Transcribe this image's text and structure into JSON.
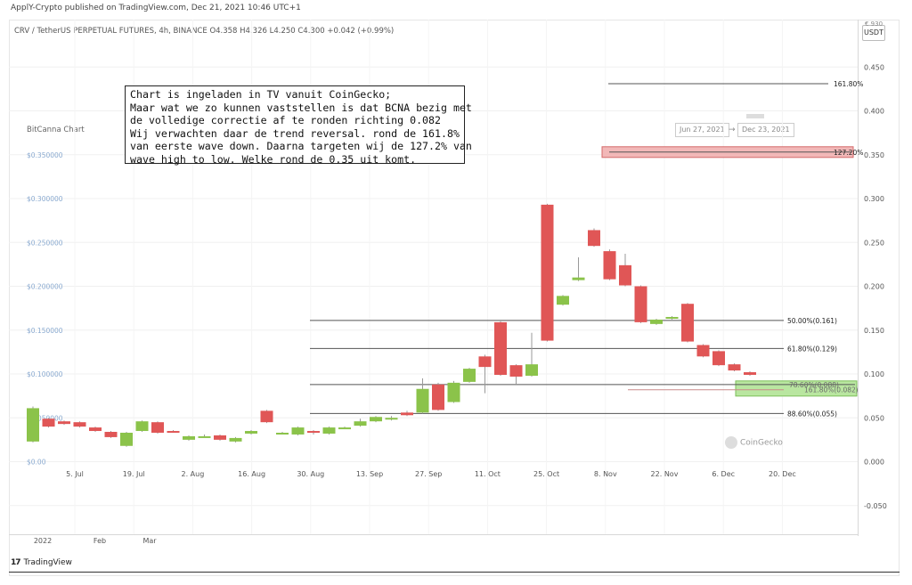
{
  "header": {
    "published": "ApplY-Crypto published on TradingView.com, Dec 21, 2021 10:46 UTC+1",
    "symbol": "CRV / TetherUS PERPETUAL FUTURES, 4h, BINANCE  O4.358  H4.326  L4.250  C4.300  +0.042 (+0.99%)",
    "currency": "USDT",
    "currency_top": "€ 930"
  },
  "annotation": {
    "lines": [
      "Chart is ingeladen in TV vanuit CoinGecko;",
      "Maar wat we zo kunnen vaststellen is dat BCNA bezig met",
      "de volledige correctie af te ronden richting 0.082",
      "Wij verwachten daar de trend reversal. rond de 161.8%",
      "van eerste wave down. Daarna targeten wij de 127.2% van",
      "wave high to low. Welke rond de 0.35 uit komt."
    ]
  },
  "inset": {
    "title": "BitCanna Chart",
    "y_labels": [
      "$0.350000",
      "$0.300000",
      "$0.250000",
      "$0.200000",
      "$0.150000",
      "$0.100000",
      "$0.050000",
      "$0.00"
    ],
    "logo": "CoinGecko"
  },
  "date_range": {
    "start": "Jun 27, 2021",
    "arrow": "→",
    "end": "Dec 23, 2021"
  },
  "footer": {
    "logo": "TradingView"
  },
  "colors": {
    "bull": "#8bc34a",
    "bear": "#e05656",
    "fib": "#555555",
    "target_box": "#f2b8b8",
    "support_box": "#b9e6a0"
  },
  "chart_data": {
    "type": "candlestick",
    "title": "",
    "xlabel": "",
    "ylabel": "",
    "ylim": [
      -0.1,
      0.5
    ],
    "y_ticks": [
      0.45,
      0.4,
      0.35,
      0.3,
      0.25,
      0.2,
      0.15,
      0.1,
      0.05,
      0.0,
      -0.05
    ],
    "y_tick_labels": [
      "0.450",
      "0.400",
      "0.350",
      "0.300",
      "0.250",
      "0.200",
      "0.150",
      "0.100",
      "0.050",
      "0.000",
      "-0.050"
    ],
    "x_tick_labels": [
      "5. Jul",
      "19. Jul",
      "2. Aug",
      "16. Aug",
      "30. Aug",
      "13. Sep",
      "27. Sep",
      "11. Oct",
      "25. Oct",
      "8. Nov",
      "22. Nov",
      "6. Dec",
      "20. Dec"
    ],
    "lower_axis_labels": [
      "2022",
      "Feb",
      "Mar"
    ],
    "candles": [
      {
        "o": 0.023,
        "c": 0.061,
        "h": 0.063,
        "l": 0.022
      },
      {
        "o": 0.049,
        "c": 0.04,
        "h": 0.05,
        "l": 0.039
      },
      {
        "o": 0.046,
        "c": 0.043,
        "h": 0.047,
        "l": 0.042
      },
      {
        "o": 0.045,
        "c": 0.04,
        "h": 0.046,
        "l": 0.039
      },
      {
        "o": 0.039,
        "c": 0.035,
        "h": 0.04,
        "l": 0.034
      },
      {
        "o": 0.034,
        "c": 0.028,
        "h": 0.035,
        "l": 0.027
      },
      {
        "o": 0.018,
        "c": 0.033,
        "h": 0.034,
        "l": 0.017
      },
      {
        "o": 0.035,
        "c": 0.046,
        "h": 0.047,
        "l": 0.034
      },
      {
        "o": 0.045,
        "c": 0.033,
        "h": 0.046,
        "l": 0.032
      },
      {
        "o": 0.035,
        "c": 0.034,
        "h": 0.036,
        "l": 0.033
      },
      {
        "o": 0.025,
        "c": 0.029,
        "h": 0.03,
        "l": 0.024
      },
      {
        "o": 0.029,
        "c": 0.029,
        "h": 0.031,
        "l": 0.028
      },
      {
        "o": 0.03,
        "c": 0.025,
        "h": 0.031,
        "l": 0.024
      },
      {
        "o": 0.023,
        "c": 0.027,
        "h": 0.028,
        "l": 0.022
      },
      {
        "o": 0.032,
        "c": 0.035,
        "h": 0.036,
        "l": 0.031
      },
      {
        "o": 0.058,
        "c": 0.045,
        "h": 0.059,
        "l": 0.044
      },
      {
        "o": 0.033,
        "c": 0.033,
        "h": 0.034,
        "l": 0.032
      },
      {
        "o": 0.031,
        "c": 0.039,
        "h": 0.04,
        "l": 0.03
      },
      {
        "o": 0.035,
        "c": 0.033,
        "h": 0.036,
        "l": 0.031
      },
      {
        "o": 0.032,
        "c": 0.039,
        "h": 0.04,
        "l": 0.031
      },
      {
        "o": 0.039,
        "c": 0.039,
        "h": 0.04,
        "l": 0.038
      },
      {
        "o": 0.041,
        "c": 0.046,
        "h": 0.049,
        "l": 0.04
      },
      {
        "o": 0.046,
        "c": 0.051,
        "h": 0.052,
        "l": 0.045
      },
      {
        "o": 0.048,
        "c": 0.05,
        "h": 0.052,
        "l": 0.047
      },
      {
        "o": 0.056,
        "c": 0.053,
        "h": 0.058,
        "l": 0.052
      },
      {
        "o": 0.056,
        "c": 0.083,
        "h": 0.095,
        "l": 0.055
      },
      {
        "o": 0.088,
        "c": 0.059,
        "h": 0.09,
        "l": 0.058
      },
      {
        "o": 0.068,
        "c": 0.09,
        "h": 0.092,
        "l": 0.067
      },
      {
        "o": 0.091,
        "c": 0.106,
        "h": 0.107,
        "l": 0.09
      },
      {
        "o": 0.12,
        "c": 0.108,
        "h": 0.122,
        "l": 0.078
      },
      {
        "o": 0.159,
        "c": 0.099,
        "h": 0.16,
        "l": 0.098
      },
      {
        "o": 0.11,
        "c": 0.097,
        "h": 0.111,
        "l": 0.088
      },
      {
        "o": 0.098,
        "c": 0.111,
        "h": 0.147,
        "l": 0.097
      },
      {
        "o": 0.293,
        "c": 0.138,
        "h": 0.294,
        "l": 0.137
      },
      {
        "o": 0.179,
        "c": 0.189,
        "h": 0.19,
        "l": 0.178
      },
      {
        "o": 0.207,
        "c": 0.21,
        "h": 0.233,
        "l": 0.206
      },
      {
        "o": 0.264,
        "c": 0.246,
        "h": 0.266,
        "l": 0.245
      },
      {
        "o": 0.24,
        "c": 0.208,
        "h": 0.242,
        "l": 0.207
      },
      {
        "o": 0.224,
        "c": 0.201,
        "h": 0.237,
        "l": 0.2
      },
      {
        "o": 0.2,
        "c": 0.159,
        "h": 0.201,
        "l": 0.158
      },
      {
        "o": 0.157,
        "c": 0.162,
        "h": 0.163,
        "l": 0.156
      },
      {
        "o": 0.163,
        "c": 0.165,
        "h": 0.166,
        "l": 0.162
      },
      {
        "o": 0.18,
        "c": 0.137,
        "h": 0.181,
        "l": 0.136
      },
      {
        "o": 0.133,
        "c": 0.12,
        "h": 0.134,
        "l": 0.119
      },
      {
        "o": 0.126,
        "c": 0.11,
        "h": 0.127,
        "l": 0.109
      },
      {
        "o": 0.111,
        "c": 0.104,
        "h": 0.112,
        "l": 0.103
      },
      {
        "o": 0.102,
        "c": 0.099,
        "h": 0.103,
        "l": 0.098
      }
    ],
    "fib_levels": [
      {
        "label": "161.80%",
        "value": 0.431
      },
      {
        "label": "127.20%",
        "value": 0.353
      },
      {
        "label": "50.00%(0.161)",
        "value": 0.161
      },
      {
        "label": "61.80%(0.129)",
        "value": 0.129
      },
      {
        "label": "78.60%(0.088)",
        "value": 0.088
      },
      {
        "label": "161.80%(0.082)",
        "value": 0.082
      },
      {
        "label": "88.60%(0.055)",
        "value": 0.055
      }
    ]
  }
}
